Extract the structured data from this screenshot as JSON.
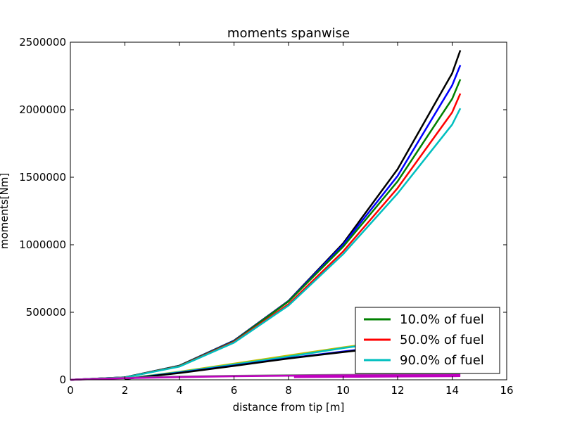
{
  "chart_data": {
    "type": "line",
    "title": "moments spanwise",
    "xlabel": "distance from tip [m]",
    "ylabel": "moments[Nm]",
    "xlim": [
      0,
      16
    ],
    "ylim": [
      0,
      2500000
    ],
    "xticks": [
      0,
      2,
      4,
      6,
      8,
      10,
      12,
      14,
      16
    ],
    "yticks": [
      0,
      500000,
      1000000,
      1500000,
      2000000,
      2500000
    ],
    "grid": false,
    "legend_position": "lower-right",
    "legend": [
      {
        "label": "10.0% of fuel",
        "color": "#008000"
      },
      {
        "label": "50.0% of fuel",
        "color": "#ff0000"
      },
      {
        "label": "90.0% of fuel",
        "color": "#00bfbf"
      }
    ],
    "series": [
      {
        "color": "#000000",
        "x": [
          0,
          2,
          4,
          6,
          8,
          10,
          12,
          14,
          14.3
        ],
        "y": [
          0,
          18000,
          105000,
          290000,
          585000,
          1010000,
          1560000,
          2270000,
          2440000
        ]
      },
      {
        "color": "#0000ff",
        "x": [
          0,
          2,
          4,
          6,
          8,
          10,
          12,
          14,
          14.3
        ],
        "y": [
          0,
          18000,
          104000,
          288000,
          583000,
          1000000,
          1510000,
          2180000,
          2330000
        ]
      },
      {
        "color": "#008000",
        "x": [
          0,
          2,
          4,
          6,
          8,
          10,
          12,
          14,
          14.3
        ],
        "y": [
          0,
          18000,
          103000,
          285000,
          580000,
          985000,
          1470000,
          2080000,
          2225000
        ]
      },
      {
        "color": "#ff0000",
        "x": [
          0,
          2,
          4,
          6,
          8,
          10,
          12,
          14,
          14.3
        ],
        "y": [
          0,
          17000,
          100000,
          280000,
          560000,
          950000,
          1420000,
          1980000,
          2120000
        ]
      },
      {
        "color": "#00bfbf",
        "x": [
          0,
          2,
          4,
          6,
          8,
          10,
          12,
          14,
          14.3
        ],
        "y": [
          0,
          17000,
          98000,
          275000,
          550000,
          930000,
          1380000,
          1890000,
          2010000
        ]
      },
      {
        "color": "#bfbf00",
        "x": [
          2,
          4,
          6,
          8,
          10,
          12,
          14,
          14.3
        ],
        "y": [
          8000,
          60000,
          120000,
          180000,
          240000,
          295000,
          335000,
          345000
        ]
      },
      {
        "color": "#00bfbf",
        "x": [
          2,
          4,
          6,
          8,
          10,
          12,
          14,
          14.3
        ],
        "y": [
          8000,
          57000,
          113000,
          172000,
          235000,
          290000,
          330000,
          340000
        ]
      },
      {
        "color": "#0000ff",
        "x": [
          2,
          4,
          6,
          8,
          10,
          12,
          14,
          14.3
        ],
        "y": [
          7000,
          52000,
          105000,
          160000,
          210000,
          255000,
          280000,
          285000
        ]
      },
      {
        "color": "#000000",
        "x": [
          2,
          4,
          6,
          8,
          10,
          12,
          14,
          14.3
        ],
        "y": [
          7000,
          50000,
          103000,
          158000,
          205000,
          250000,
          275000,
          280000
        ]
      },
      {
        "color": "#808080",
        "x": [
          0,
          2,
          4,
          6,
          8,
          10,
          12,
          14,
          14.3
        ],
        "y": [
          0,
          14000,
          24000,
          30000,
          34000,
          37000,
          38000,
          39000,
          39000
        ]
      },
      {
        "color": "#bf00bf",
        "x": [
          0,
          2,
          4,
          6,
          8,
          10,
          12,
          14,
          14.3
        ],
        "y": [
          0,
          12000,
          20000,
          26000,
          30000,
          33000,
          34000,
          35000,
          35000
        ]
      },
      {
        "color": "#bf00bf",
        "x": [
          8.2,
          10,
          12,
          14,
          14.3
        ],
        "y": [
          20000,
          22000,
          24000,
          26000,
          27000
        ]
      }
    ]
  }
}
